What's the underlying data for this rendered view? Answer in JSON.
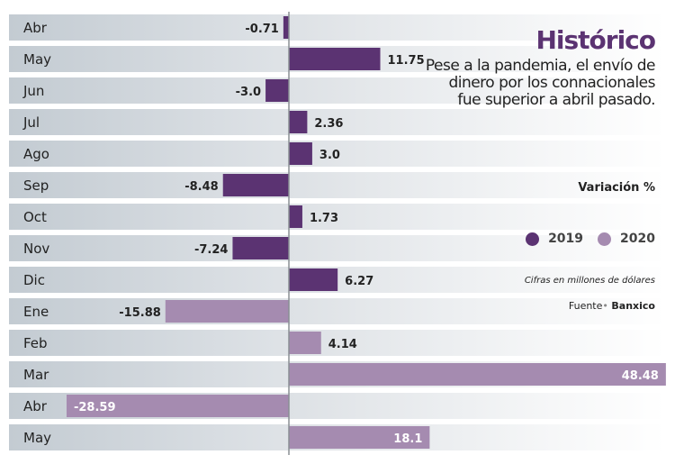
{
  "chart_data": {
    "type": "bar",
    "orientation": "horizontal",
    "title": "Histórico",
    "subtitle": "Pese a la pandemia, el envío de dinero por los connacionales fue superior a abril pasado.",
    "value_label": "Variación %",
    "categories": [
      "Abr",
      "May",
      "Jun",
      "Jul",
      "Ago",
      "Sep",
      "Oct",
      "Nov",
      "Dic",
      "Ene",
      "Feb",
      "Mar",
      "Abr",
      "May"
    ],
    "values": [
      -0.71,
      11.75,
      -3.0,
      2.36,
      3.0,
      -8.48,
      1.73,
      -7.24,
      6.27,
      -15.88,
      4.14,
      48.48,
      -28.59,
      18.1
    ],
    "value_labels": [
      "-0.71",
      "11.75",
      "-3.0",
      "2.36",
      "3.0",
      "-8.48",
      "1.73",
      "-7.24",
      "6.27",
      "-15.88",
      "4.14",
      "48.48",
      "-28.59",
      "18.1"
    ],
    "series_index": [
      0,
      0,
      0,
      0,
      0,
      0,
      0,
      0,
      0,
      1,
      1,
      1,
      1,
      1
    ],
    "series": [
      {
        "name": "2019",
        "color": "#5b3372"
      },
      {
        "name": "2020",
        "color": "#a58bb0"
      }
    ],
    "xlim": [
      -36,
      48.5
    ],
    "grid": false,
    "legend_position": "right",
    "note": "Cifras en millones de dólares",
    "source_label": "Fuente",
    "source": "Banxico"
  }
}
